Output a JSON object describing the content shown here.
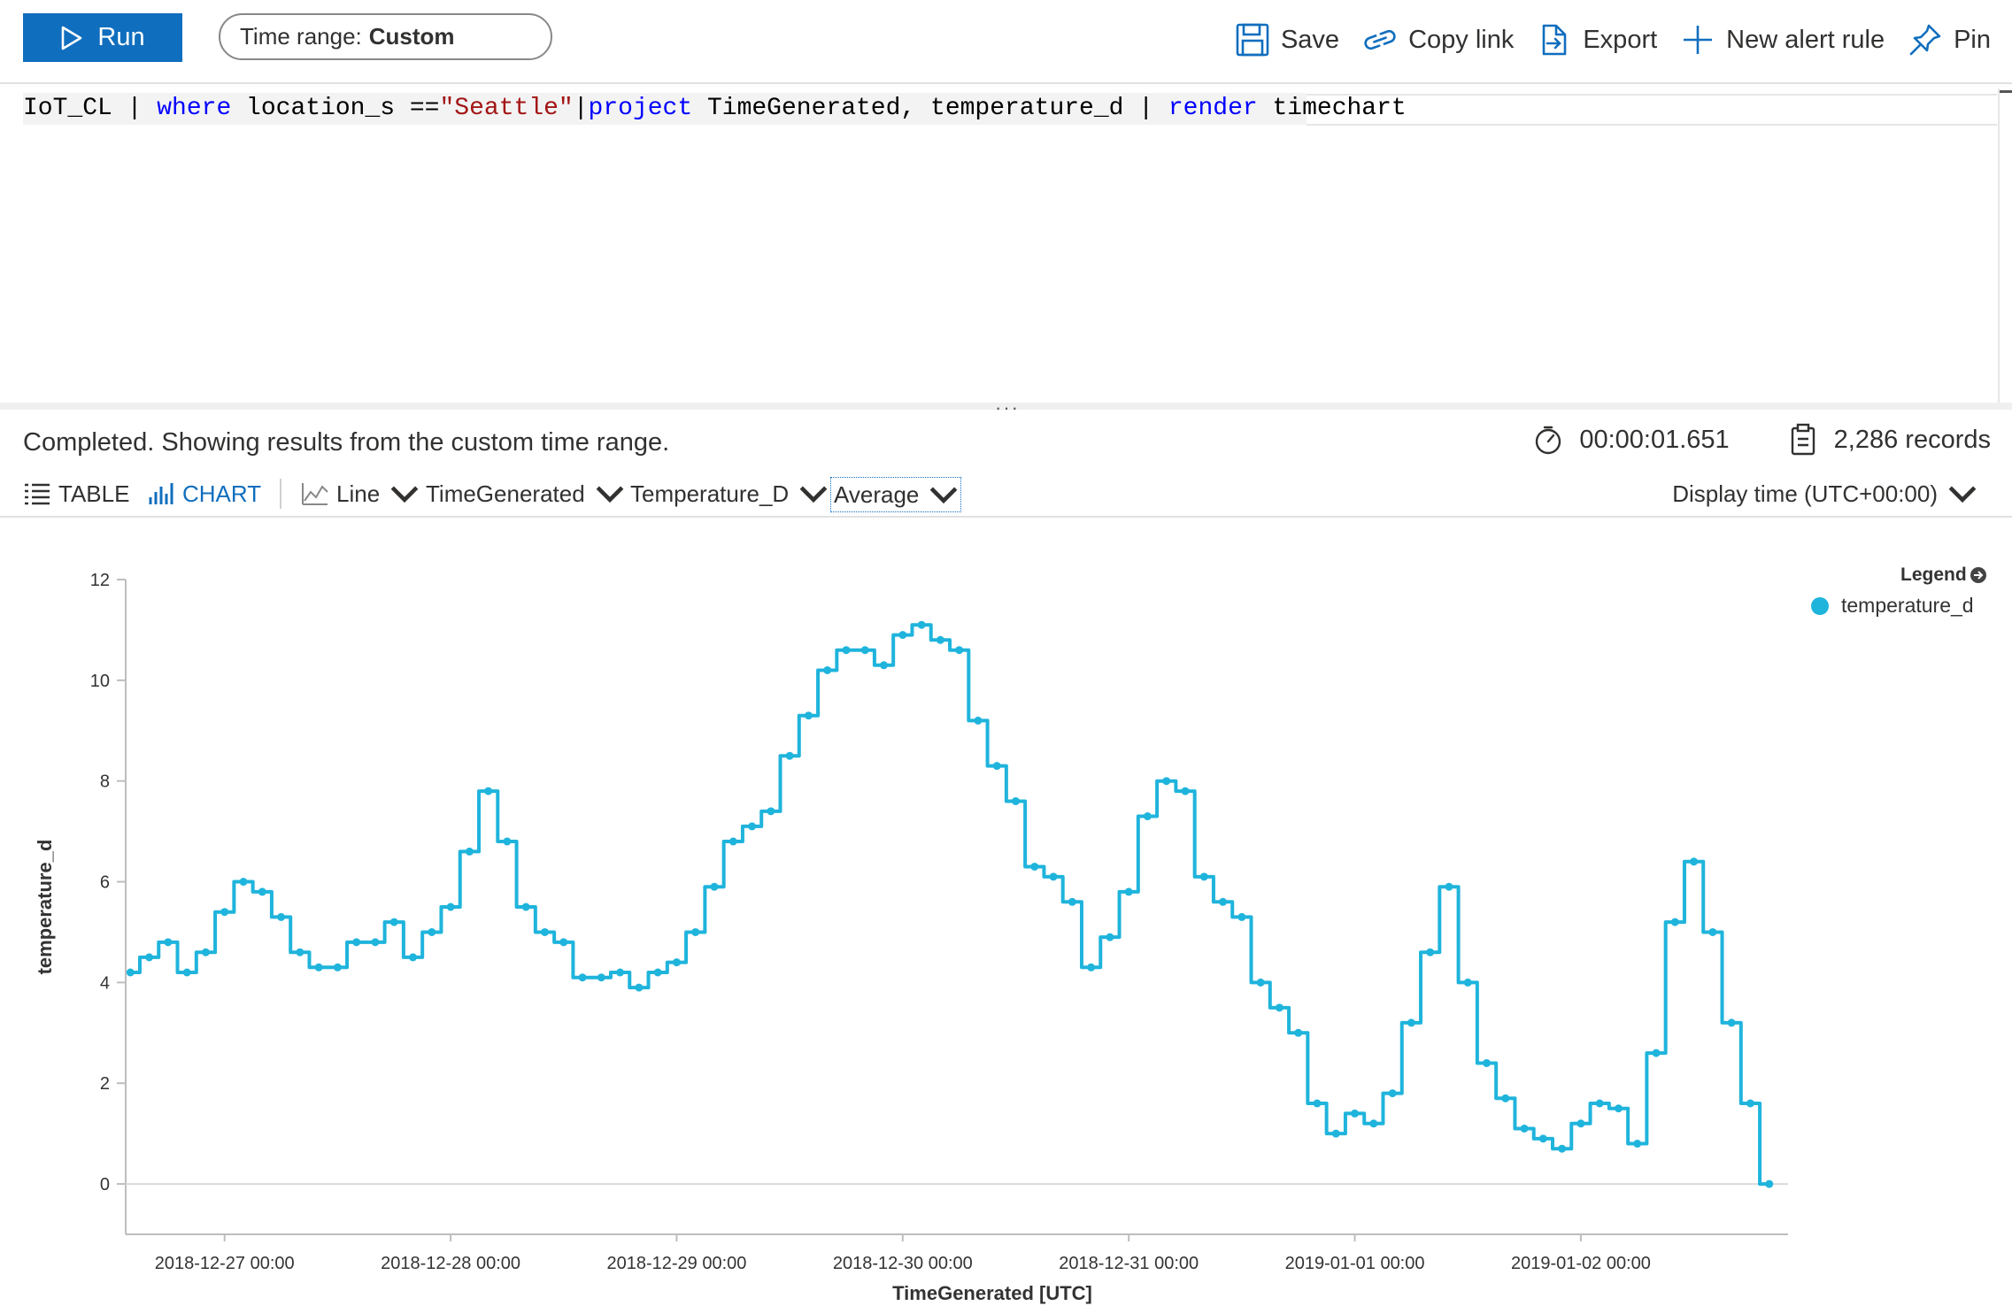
{
  "toolbar": {
    "run_label": "Run",
    "time_range_label": "Time range:",
    "time_range_value": "Custom",
    "actions": [
      "Save",
      "Copy link",
      "Export",
      "New alert rule",
      "Pin"
    ]
  },
  "query": {
    "parts": [
      "IoT_CL | ",
      "where",
      " location_s ==",
      "\"Seattle\"",
      "|",
      "project",
      " TimeGenerated, temperature_d | ",
      "render",
      " timechart"
    ]
  },
  "status": {
    "message": "Completed. Showing results from the custom time range.",
    "duration": "00:00:01.651",
    "records": "2,286 records"
  },
  "viewbar": {
    "table_label": "TABLE",
    "chart_label": "CHART",
    "chart_type": "Line",
    "x_column": "TimeGenerated",
    "y_column": "Temperature_D",
    "aggregation": "Average",
    "display_time": "Display time (UTC+00:00)"
  },
  "colors": {
    "accent": "#106ebe",
    "series": "#1fb4dc"
  },
  "icons": [
    "play-icon",
    "save-icon",
    "copy-link-icon",
    "export-icon",
    "plus-icon",
    "pin-icon",
    "timer-icon",
    "clipboard-icon",
    "table-icon",
    "bar-chart-icon",
    "line-chart-icon",
    "chevron-down-icon",
    "arrow-right-circle-icon"
  ],
  "legend": {
    "title": "Legend",
    "items": [
      "temperature_d"
    ]
  },
  "chart_data": {
    "type": "line",
    "xlabel": "TimeGenerated [UTC]",
    "ylabel": "temperature_d",
    "x_ticks": [
      "2018-12-27 00:00",
      "2018-12-28 00:00",
      "2018-12-29 00:00",
      "2018-12-30 00:00",
      "2018-12-31 00:00",
      "2019-01-01 00:00",
      "2019-01-02 00:00"
    ],
    "y_ticks": [
      "0",
      "2",
      "4",
      "6",
      "8",
      "10",
      "12"
    ],
    "ylim": [
      -1,
      12
    ],
    "xlim": [
      "2018-12-26 13:30",
      "2019-01-02 22:00"
    ],
    "grid": "horizontal baseline only",
    "series": [
      {
        "name": "temperature_d",
        "x": [
          "2018-12-26 14:00",
          "2018-12-26 16:00",
          "2018-12-26 18:00",
          "2018-12-26 20:00",
          "2018-12-26 22:00",
          "2018-12-27 00:00",
          "2018-12-27 02:00",
          "2018-12-27 04:00",
          "2018-12-27 06:00",
          "2018-12-27 08:00",
          "2018-12-27 10:00",
          "2018-12-27 12:00",
          "2018-12-27 14:00",
          "2018-12-27 16:00",
          "2018-12-27 18:00",
          "2018-12-27 20:00",
          "2018-12-27 22:00",
          "2018-12-28 00:00",
          "2018-12-28 02:00",
          "2018-12-28 04:00",
          "2018-12-28 06:00",
          "2018-12-28 08:00",
          "2018-12-28 10:00",
          "2018-12-28 12:00",
          "2018-12-28 14:00",
          "2018-12-28 16:00",
          "2018-12-28 18:00",
          "2018-12-28 20:00",
          "2018-12-28 22:00",
          "2018-12-29 00:00",
          "2018-12-29 02:00",
          "2018-12-29 04:00",
          "2018-12-29 06:00",
          "2018-12-29 08:00",
          "2018-12-29 10:00",
          "2018-12-29 12:00",
          "2018-12-29 14:00",
          "2018-12-29 16:00",
          "2018-12-29 18:00",
          "2018-12-29 20:00",
          "2018-12-29 22:00",
          "2018-12-30 00:00",
          "2018-12-30 02:00",
          "2018-12-30 04:00",
          "2018-12-30 06:00",
          "2018-12-30 08:00",
          "2018-12-30 10:00",
          "2018-12-30 12:00",
          "2018-12-30 14:00",
          "2018-12-30 16:00",
          "2018-12-30 18:00",
          "2018-12-30 20:00",
          "2018-12-30 22:00",
          "2018-12-31 00:00",
          "2018-12-31 02:00",
          "2018-12-31 04:00",
          "2018-12-31 06:00",
          "2018-12-31 08:00",
          "2018-12-31 10:00",
          "2018-12-31 12:00",
          "2018-12-31 14:00",
          "2018-12-31 16:00",
          "2018-12-31 18:00",
          "2018-12-31 20:00",
          "2018-12-31 22:00",
          "2019-01-01 00:00",
          "2019-01-01 02:00",
          "2019-01-01 04:00",
          "2019-01-01 06:00",
          "2019-01-01 08:00",
          "2019-01-01 10:00",
          "2019-01-01 12:00",
          "2019-01-01 14:00",
          "2019-01-01 16:00",
          "2019-01-01 18:00",
          "2019-01-01 20:00",
          "2019-01-01 22:00",
          "2019-01-02 00:00",
          "2019-01-02 02:00",
          "2019-01-02 04:00",
          "2019-01-02 06:00",
          "2019-01-02 08:00",
          "2019-01-02 10:00",
          "2019-01-02 12:00",
          "2019-01-02 14:00",
          "2019-01-02 16:00",
          "2019-01-02 18:00",
          "2019-01-02 20:00"
        ],
        "values": [
          4.2,
          4.5,
          4.8,
          4.2,
          4.6,
          5.4,
          6.0,
          5.8,
          5.3,
          4.6,
          4.3,
          4.3,
          4.8,
          4.8,
          5.2,
          4.5,
          5.0,
          5.5,
          6.6,
          7.8,
          6.8,
          5.5,
          5.0,
          4.8,
          4.1,
          4.1,
          4.2,
          3.9,
          4.2,
          4.4,
          5.0,
          5.9,
          6.8,
          7.1,
          7.4,
          8.5,
          9.3,
          10.2,
          10.6,
          10.6,
          10.3,
          10.9,
          11.1,
          10.8,
          10.6,
          9.2,
          8.3,
          7.6,
          6.3,
          6.1,
          5.6,
          4.3,
          4.9,
          5.8,
          7.3,
          8.0,
          7.8,
          6.1,
          5.6,
          5.3,
          4.0,
          3.5,
          3.0,
          1.6,
          1.0,
          1.4,
          1.2,
          1.8,
          3.2,
          4.6,
          5.9,
          4.0,
          2.4,
          1.7,
          1.1,
          0.9,
          0.7,
          1.2,
          1.6,
          1.5,
          0.8,
          2.6,
          5.2,
          6.4,
          5.0,
          3.2,
          1.6,
          0.0
        ]
      }
    ]
  }
}
